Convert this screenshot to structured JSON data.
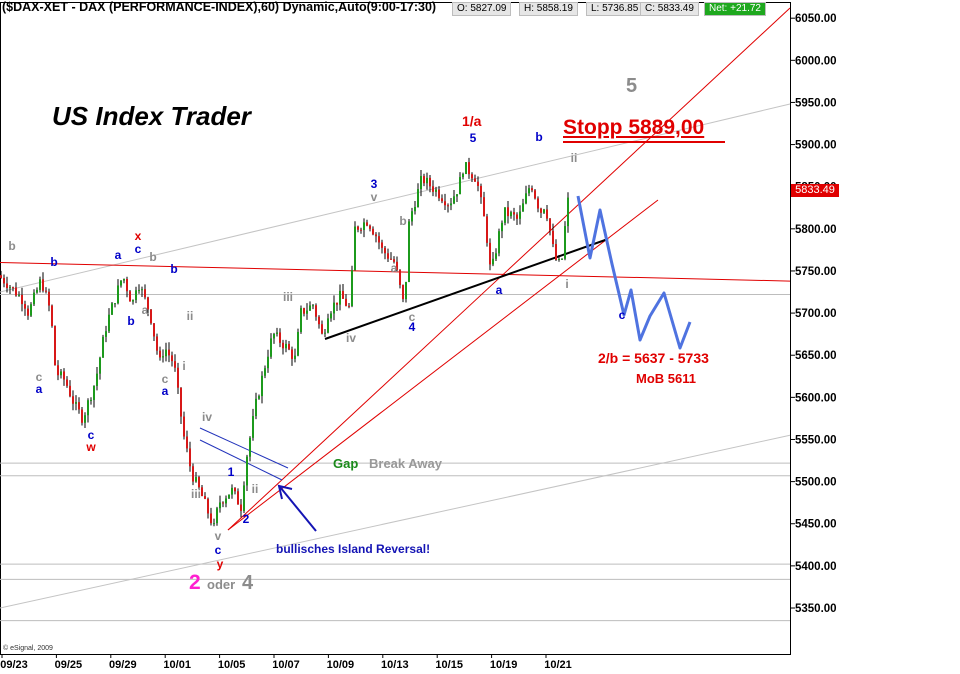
{
  "header": {
    "title": "($DAX-XET - DAX (PERFORMANCE-INDEX),60) Dynamic,Auto(9:00-17:30)",
    "open": "O: 5827.09",
    "high": "H: 5858.19",
    "low": "L: 5736.85",
    "close": "C: 5833.49",
    "net": "Net: +21.72"
  },
  "brand": "US Index Trader",
  "stop_label": "Stopp 5889,00",
  "current_price_tag": "5833.49",
  "copyright": "© eSignal, 2009",
  "colors": {
    "up_candle": "#1c9a1c",
    "down_candle": "#d81818",
    "wick": "#000000",
    "red_line": "#e00000",
    "grey_line": "#b0b0b0",
    "projection": "#4f73e0",
    "wave_blue": "#0000c8",
    "wave_red": "#e00000",
    "wave_grey": "#8c8c8c",
    "wave_magenta": "#ff20d0",
    "gap_green": "#1a8a1a"
  },
  "annotations": {
    "target_range": "2/b  =  5637 - 5733",
    "mob": "MoB 5611",
    "gap": "Gap",
    "breakaway": "Break Away",
    "reversal": "bullisches Island Reversal!",
    "oder": "oder",
    "wave_2": "2",
    "wave_4_alt": "4",
    "wave_5_big": "5",
    "wave_1a": "1/a"
  },
  "chart_data": {
    "type": "candlestick",
    "instrument": "$DAX-XET",
    "interval": "60",
    "y_axis": {
      "ticks": [
        5350,
        5400,
        5450,
        5500,
        5550,
        5600,
        5650,
        5700,
        5750,
        5800,
        5850,
        5900,
        5950,
        6000,
        6050
      ],
      "tick_labels": [
        "5350.00",
        "5400.00",
        "5450.00",
        "5500.00",
        "5550.00",
        "5600.00",
        "5650.00",
        "5700.00",
        "5750.00",
        "5800.00",
        "5850.00",
        "5900.00",
        "5950.00",
        "6000.00",
        "6050.00"
      ],
      "range": [
        5315,
        6060
      ]
    },
    "x_axis": {
      "tick_labels": [
        "09/23",
        "09/25",
        "09/29",
        "10/01",
        "10/05",
        "10/07",
        "10/09",
        "10/13",
        "10/15",
        "10/19",
        "10/21"
      ]
    },
    "anchors": [
      {
        "date": "09/23 09:00",
        "price": 5745
      },
      {
        "date": "09/23 12:00",
        "price": 5735
      },
      {
        "date": "09/23 17:00",
        "price": 5715
      },
      {
        "date": "09/24 10:00",
        "price": 5700
      },
      {
        "date": "09/24 14:00",
        "price": 5740
      },
      {
        "date": "09/24 17:00",
        "price": 5700
      },
      {
        "date": "09/25 10:00",
        "price": 5630
      },
      {
        "date": "09/25 13:00",
        "price": 5620
      },
      {
        "date": "09/25 16:00",
        "price": 5590
      },
      {
        "date": "09/28 10:00",
        "price": 5575
      },
      {
        "date": "09/28 14:00",
        "price": 5620
      },
      {
        "date": "09/28 17:00",
        "price": 5680
      },
      {
        "date": "09/29 10:00",
        "price": 5700
      },
      {
        "date": "09/29 14:00",
        "price": 5745
      },
      {
        "date": "09/29 17:00",
        "price": 5710
      },
      {
        "date": "09/30 10:00",
        "price": 5740
      },
      {
        "date": "09/30 14:00",
        "price": 5700
      },
      {
        "date": "09/30 17:00",
        "price": 5640
      },
      {
        "date": "10/01 10:00",
        "price": 5660
      },
      {
        "date": "10/01 13:00",
        "price": 5640
      },
      {
        "date": "10/01 16:00",
        "price": 5555
      },
      {
        "date": "10/02 10:00",
        "price": 5510
      },
      {
        "date": "10/02 13:00",
        "price": 5485
      },
      {
        "date": "10/02 17:00",
        "price": 5445
      },
      {
        "date": "10/05 10:00",
        "price": 5475
      },
      {
        "date": "10/05 14:00",
        "price": 5490
      },
      {
        "date": "10/05 17:00",
        "price": 5470
      },
      {
        "date": "10/06 10:00",
        "price": 5525
      },
      {
        "date": "10/06 13:00",
        "price": 5590
      },
      {
        "date": "10/06 17:00",
        "price": 5655
      },
      {
        "date": "10/07 10:00",
        "price": 5675
      },
      {
        "date": "10/07 14:00",
        "price": 5660
      },
      {
        "date": "10/07 17:00",
        "price": 5645
      },
      {
        "date": "10/08 10:00",
        "price": 5700
      },
      {
        "date": "10/08 14:00",
        "price": 5710
      },
      {
        "date": "10/08 17:00",
        "price": 5670
      },
      {
        "date": "10/09 10:00",
        "price": 5700
      },
      {
        "date": "10/09 14:00",
        "price": 5720
      },
      {
        "date": "10/09 17:00",
        "price": 5705
      },
      {
        "date": "10/12 10:00",
        "price": 5800
      },
      {
        "date": "10/12 14:00",
        "price": 5810
      },
      {
        "date": "10/12 17:00",
        "price": 5790
      },
      {
        "date": "10/13 10:00",
        "price": 5775
      },
      {
        "date": "10/13 14:00",
        "price": 5760
      },
      {
        "date": "10/13 17:00",
        "price": 5705
      },
      {
        "date": "10/14 10:00",
        "price": 5810
      },
      {
        "date": "10/14 14:00",
        "price": 5860
      },
      {
        "date": "10/14 17:00",
        "price": 5850
      },
      {
        "date": "10/15 10:00",
        "price": 5845
      },
      {
        "date": "10/15 14:00",
        "price": 5830
      },
      {
        "date": "10/15 17:00",
        "price": 5850
      },
      {
        "date": "10/16 10:00",
        "price": 5875
      },
      {
        "date": "10/16 14:00",
        "price": 5860
      },
      {
        "date": "10/16 17:00",
        "price": 5800
      },
      {
        "date": "10/19 10:00",
        "price": 5745
      },
      {
        "date": "10/19 14:00",
        "price": 5820
      },
      {
        "date": "10/19 17:00",
        "price": 5815
      },
      {
        "date": "10/20 10:00",
        "price": 5810
      },
      {
        "date": "10/20 14:00",
        "price": 5855
      },
      {
        "date": "10/20 17:00",
        "price": 5820
      },
      {
        "date": "10/21 10:00",
        "price": 5830
      },
      {
        "date": "10/21 13:00",
        "price": 5765
      },
      {
        "date": "10/21 15:00",
        "price": 5755
      },
      {
        "date": "10/21 17:00",
        "price": 5833
      }
    ],
    "last": {
      "open": 5827.09,
      "high": 5858.19,
      "low": 5736.85,
      "close": 5833.49
    },
    "levels": {
      "stop": 5889.0,
      "target_low": 5637,
      "target_high": 5733,
      "mob": 5611
    }
  }
}
